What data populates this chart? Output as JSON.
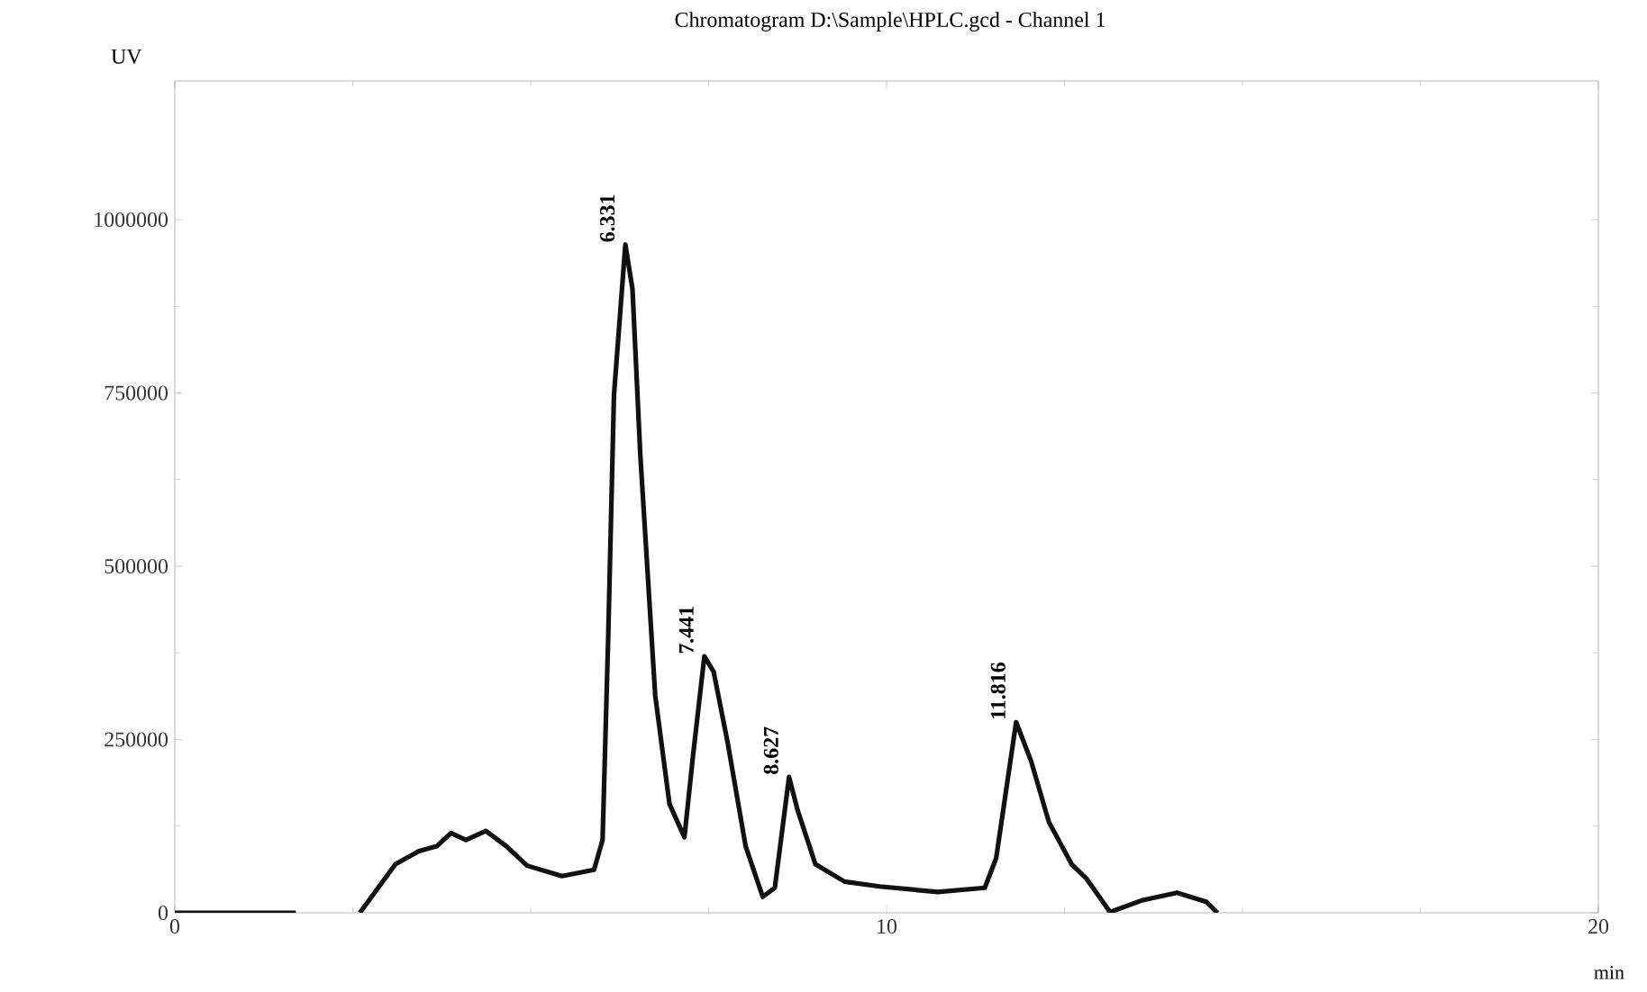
{
  "chart_data": {
    "type": "line",
    "title": "Chromatogram D:\\Sample\\HPLC.gcd - Channel 1",
    "xlabel": "min",
    "ylabel": "UV",
    "x": [
      0,
      1.7,
      2.0,
      2.6,
      3.1,
      3.43,
      3.68,
      3.88,
      4.09,
      4.37,
      4.66,
      4.95,
      5.44,
      5.89,
      6.01,
      6.09,
      6.17,
      6.33,
      6.43,
      6.54,
      6.75,
      6.95,
      7.16,
      7.28,
      7.44,
      7.57,
      7.77,
      8.02,
      8.26,
      8.43,
      8.63,
      8.75,
      9.0,
      9.41,
      9.9,
      10.72,
      11.38,
      11.54,
      11.82,
      12.03,
      12.28,
      12.6,
      12.81,
      13.14,
      13.59,
      14.08,
      14.49,
      14.65
    ],
    "series": [
      {
        "color": "#111111",
        "values": [
          0,
          0,
          null,
          0,
          70000,
          89000,
          96000,
          115000,
          105000,
          118000,
          96000,
          68000,
          53000,
          62000,
          105000,
          401000,
          747000,
          964000,
          900000,
          661000,
          313000,
          157000,
          109000,
          226000,
          370000,
          348000,
          244000,
          96000,
          23000,
          36000,
          196000,
          148000,
          70000,
          45000,
          38000,
          30000,
          36000,
          79000,
          275000,
          219000,
          131000,
          70000,
          49000,
          1000,
          18000,
          29000,
          16000,
          0
        ]
      }
    ],
    "xlim": [
      0,
      20
    ],
    "ylim": [
      0,
      1200000
    ],
    "xticks": [
      0,
      10,
      20
    ],
    "yticks": [
      0,
      250000,
      500000,
      750000,
      1000000
    ],
    "annotations": [
      {
        "text": "6.331",
        "x": 6.33,
        "y": 964000
      },
      {
        "text": "7.441",
        "x": 7.44,
        "y": 370000
      },
      {
        "text": "8.627",
        "x": 8.63,
        "y": 196000
      },
      {
        "text": "11.816",
        "x": 11.82,
        "y": 275000
      }
    ]
  }
}
